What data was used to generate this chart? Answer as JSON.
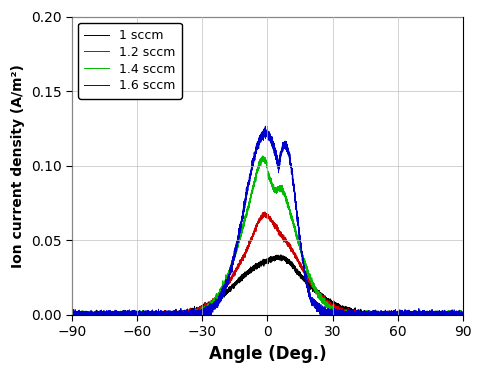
{
  "title": "",
  "xlabel": "Angle (Deg.)",
  "ylabel": "Ion current density (A/m²)",
  "xlim": [
    -90,
    90
  ],
  "ylim": [
    0,
    0.2
  ],
  "xticks": [
    -90,
    -60,
    -30,
    0,
    30,
    60,
    90
  ],
  "yticks": [
    0.0,
    0.05,
    0.1,
    0.15,
    0.2
  ],
  "grid": true,
  "legend": [
    "1 sccm",
    "1.2 sccm",
    "1.4 sccm",
    "1.6 sccm"
  ],
  "colors": [
    "#000000",
    "#cc0000",
    "#00bb00",
    "#0000cc"
  ],
  "background_color": "#ffffff",
  "figsize": [
    4.83,
    3.74
  ],
  "dpi": 100
}
